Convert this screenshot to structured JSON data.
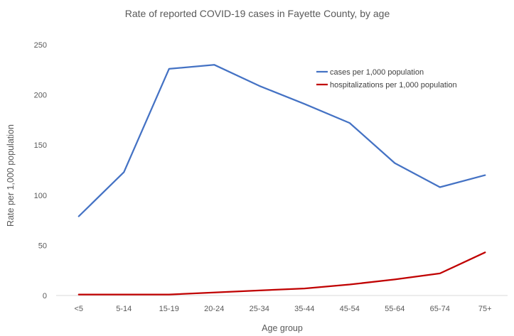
{
  "chart_data": {
    "type": "line",
    "title": "Rate of reported COVID-19 cases in Fayette County, by age",
    "xlabel": "Age group",
    "ylabel": "Rate per 1,000 population",
    "categories": [
      "<5",
      "5-14",
      "15-19",
      "20-24",
      "25-34",
      "35-44",
      "45-54",
      "55-64",
      "65-74",
      "75+"
    ],
    "ylim": [
      0,
      250
    ],
    "yticks": [
      0,
      50,
      100,
      150,
      200,
      250
    ],
    "grid": false,
    "legend": "top-right",
    "series": [
      {
        "name": "cases per 1,000 population",
        "color": "#4472C4",
        "values": [
          79,
          123,
          226,
          230,
          209,
          191,
          172,
          132,
          108,
          120
        ]
      },
      {
        "name": "hospitalizations per 1,000 population",
        "color": "#C00000",
        "values": [
          1,
          1,
          1,
          3,
          5,
          7,
          11,
          16,
          22,
          43
        ]
      }
    ]
  }
}
